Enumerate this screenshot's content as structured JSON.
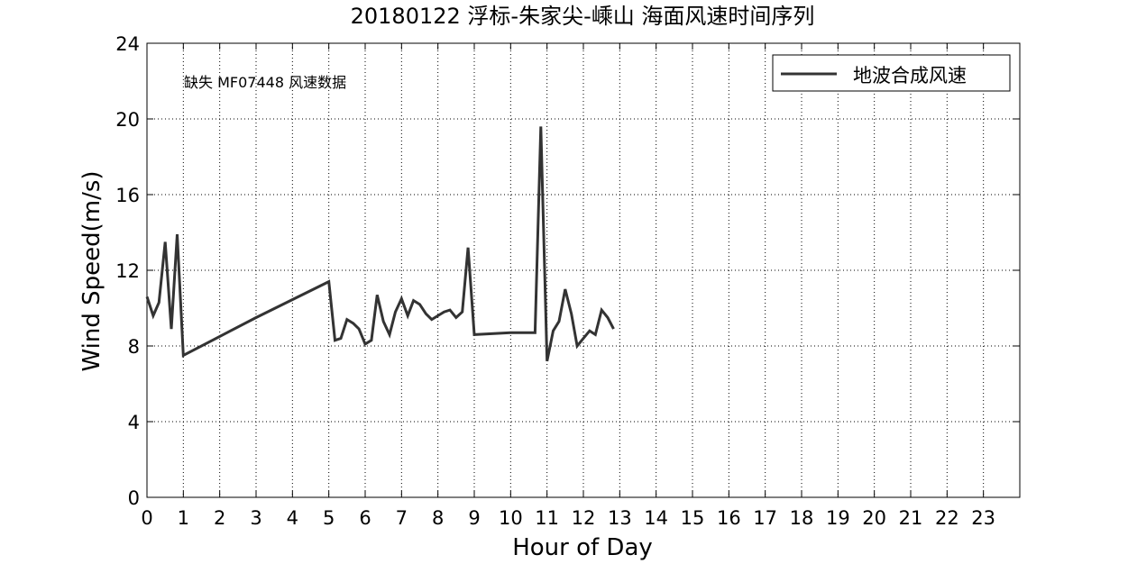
{
  "chart_data": {
    "type": "line",
    "title": "20180122 浮标-朱家尖-嵊山 海面风速时间序列",
    "xlabel": "Hour of Day",
    "ylabel": "Wind Speed(m/s)",
    "xlim": [
      0,
      24
    ],
    "ylim": [
      0,
      24
    ],
    "xticks": [
      0,
      1,
      2,
      3,
      4,
      5,
      6,
      7,
      8,
      9,
      10,
      11,
      12,
      13,
      14,
      15,
      16,
      17,
      18,
      19,
      20,
      21,
      22,
      23
    ],
    "yticks": [
      0,
      4,
      8,
      12,
      16,
      20,
      24
    ],
    "grid": true,
    "legend_position": "top-right",
    "annotation": "缺失 MF07448 风速数据",
    "series": [
      {
        "name": "地波合成风速",
        "color": "#333333",
        "x": [
          0.0,
          0.17,
          0.33,
          0.5,
          0.67,
          0.83,
          1.0,
          3.0,
          5.0,
          5.17,
          5.33,
          5.5,
          5.67,
          5.83,
          6.0,
          6.17,
          6.33,
          6.5,
          6.67,
          6.83,
          7.0,
          7.17,
          7.33,
          7.5,
          7.67,
          7.83,
          8.0,
          8.17,
          8.33,
          8.5,
          8.67,
          8.83,
          9.0,
          10.0,
          10.5,
          10.67,
          10.83,
          11.0,
          11.17,
          11.33,
          11.5,
          11.67,
          11.83,
          12.0,
          12.17,
          12.33,
          12.5,
          12.67,
          12.83
        ],
        "y": [
          10.6,
          9.6,
          10.3,
          13.5,
          8.9,
          13.9,
          7.5,
          9.5,
          11.4,
          8.3,
          8.4,
          9.4,
          9.2,
          8.9,
          8.1,
          8.3,
          10.7,
          9.3,
          8.6,
          9.8,
          10.5,
          9.6,
          10.4,
          10.2,
          9.7,
          9.4,
          9.6,
          9.8,
          9.9,
          9.5,
          9.8,
          13.2,
          8.6,
          8.7,
          8.7,
          8.7,
          19.6,
          7.2,
          8.8,
          9.3,
          11.0,
          9.7,
          8.0,
          8.4,
          8.8,
          8.6,
          9.9,
          9.5,
          8.9
        ]
      }
    ]
  }
}
